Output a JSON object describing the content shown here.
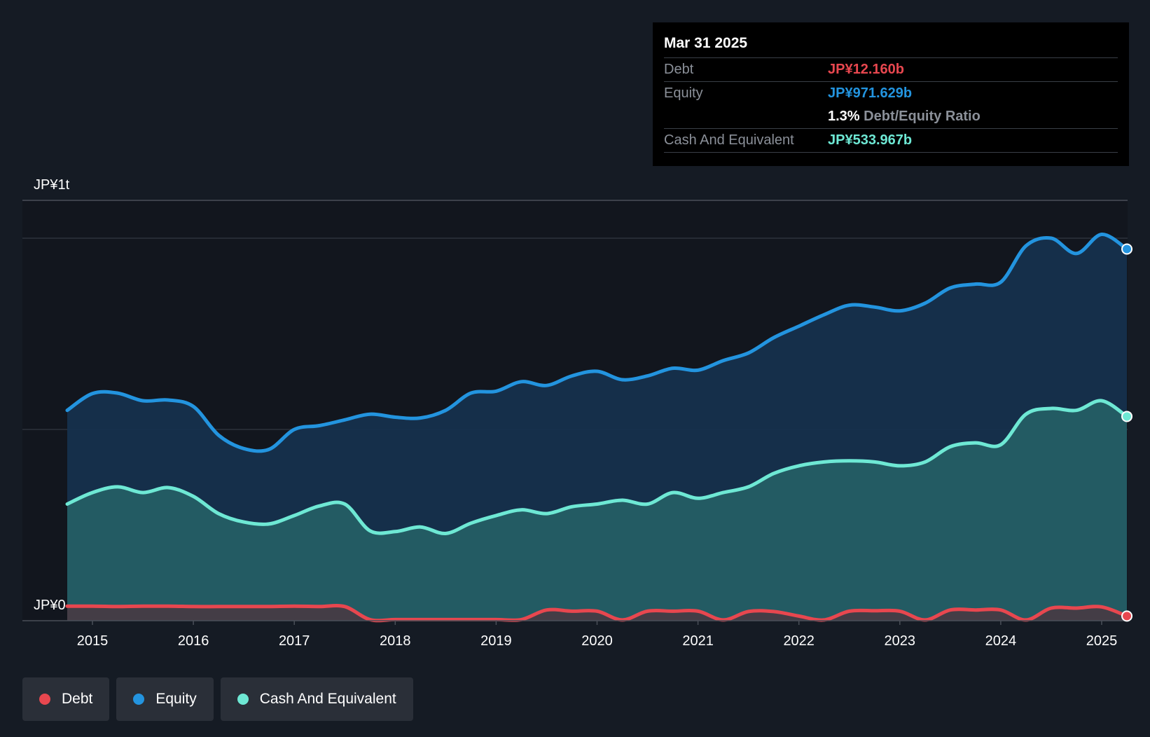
{
  "colors": {
    "background": "#151b24",
    "debt": "#e8474f",
    "equity": "#2394df",
    "cash": "#6ee8d4"
  },
  "tooltip": {
    "date": "Mar 31 2025",
    "debt_label": "Debt",
    "debt_value": "JP¥12.160b",
    "equity_label": "Equity",
    "equity_value": "JP¥971.629b",
    "ratio_value": "1.3%",
    "ratio_label": "Debt/Equity Ratio",
    "cash_label": "Cash And Equivalent",
    "cash_value": "JP¥533.967b"
  },
  "legend": {
    "debt": "Debt",
    "equity": "Equity",
    "cash": "Cash And Equivalent"
  },
  "chart_data": {
    "type": "area",
    "title": "",
    "xlabel": "",
    "ylabel": "",
    "ylim": [
      0,
      1100
    ],
    "y_unit": "JP¥ billions",
    "y_tick_labels": [
      "JP¥0",
      "JP¥1t"
    ],
    "x_tick_labels": [
      "2015",
      "2016",
      "2017",
      "2018",
      "2019",
      "2020",
      "2021",
      "2022",
      "2023",
      "2024",
      "2025"
    ],
    "x": [
      2014.75,
      2015.0,
      2015.25,
      2015.5,
      2015.75,
      2016.0,
      2016.25,
      2016.5,
      2016.75,
      2017.0,
      2017.25,
      2017.5,
      2017.75,
      2018.0,
      2018.25,
      2018.5,
      2018.75,
      2019.0,
      2019.25,
      2019.5,
      2019.75,
      2020.0,
      2020.25,
      2020.5,
      2020.75,
      2021.0,
      2021.25,
      2021.5,
      2021.75,
      2022.0,
      2022.25,
      2022.5,
      2022.75,
      2023.0,
      2023.25,
      2023.5,
      2023.75,
      2024.0,
      2024.25,
      2024.5,
      2024.75,
      2025.0,
      2025.25
    ],
    "series": [
      {
        "name": "Equity",
        "values": [
          550,
          594,
          595,
          575,
          577,
          560,
          485,
          450,
          448,
          500,
          510,
          525,
          540,
          532,
          530,
          550,
          595,
          600,
          625,
          615,
          640,
          652,
          630,
          640,
          660,
          655,
          680,
          700,
          740,
          770,
          800,
          825,
          820,
          810,
          830,
          870,
          880,
          885,
          980,
          1000,
          960,
          1010,
          971.629
        ]
      },
      {
        "name": "Cash And Equivalent",
        "values": [
          305,
          335,
          350,
          335,
          348,
          325,
          280,
          258,
          253,
          275,
          300,
          305,
          235,
          233,
          245,
          228,
          255,
          275,
          290,
          280,
          298,
          305,
          315,
          305,
          335,
          320,
          335,
          350,
          385,
          405,
          415,
          418,
          415,
          405,
          415,
          455,
          465,
          460,
          540,
          555,
          550,
          575,
          533.967
        ]
      },
      {
        "name": "Debt",
        "values": [
          38,
          38,
          37,
          38,
          38,
          37,
          37,
          37,
          37,
          38,
          37,
          37,
          3,
          3,
          3,
          3,
          3,
          3,
          3,
          28,
          25,
          25,
          2,
          25,
          25,
          25,
          2,
          24,
          24,
          12,
          2,
          25,
          26,
          25,
          2,
          28,
          28,
          28,
          2,
          33,
          33,
          36,
          12.16
        ]
      }
    ],
    "legend": [
      "Debt",
      "Equity",
      "Cash And Equivalent"
    ],
    "legend_position": "bottom-left",
    "grid": true
  }
}
